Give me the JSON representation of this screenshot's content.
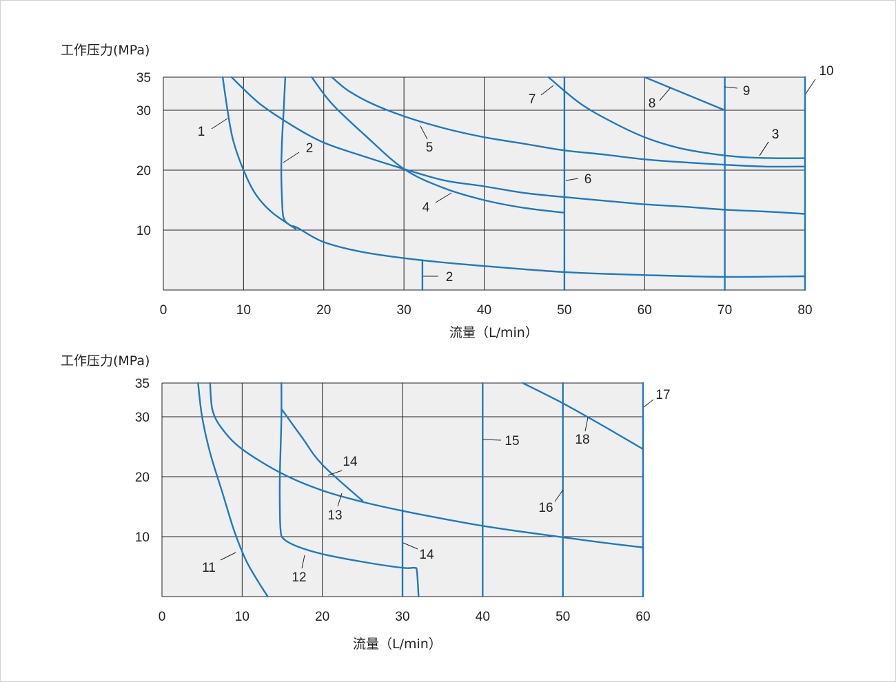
{
  "chart_data": [
    {
      "type": "line",
      "ylabel": "工作压力(MPa)",
      "xlabel": "流量（L/min）",
      "xlim": [
        0,
        80
      ],
      "ylim": [
        0,
        35
      ],
      "x_ticks": [
        "0",
        "10",
        "20",
        "30",
        "40",
        "50",
        "60",
        "70",
        "80"
      ],
      "y_ticks": [
        "10",
        "20",
        "30",
        "35"
      ],
      "grid": true,
      "line_color": "#1f78c1",
      "series": [
        {
          "name": "1",
          "points": [
            [
              7.4,
              35
            ],
            [
              8,
              30
            ],
            [
              8.7,
              25
            ],
            [
              10,
              20
            ],
            [
              11.5,
              16
            ],
            [
              13.5,
              13
            ],
            [
              16.5,
              10.2
            ]
          ]
        },
        {
          "name": "2",
          "points": [
            [
              15.2,
              35
            ],
            [
              15,
              30
            ],
            [
              14.8,
              25
            ],
            [
              14.7,
              20
            ],
            [
              14.8,
              15
            ],
            [
              15,
              12
            ],
            [
              15.8,
              10.8
            ],
            [
              16.7,
              10.4
            ],
            [
              20,
              8
            ],
            [
              25,
              6.3
            ],
            [
              32,
              5
            ],
            [
              40,
              4
            ],
            [
              50,
              3
            ],
            [
              60,
              2.5
            ],
            [
              70,
              2.2
            ],
            [
              80,
              2.3
            ]
          ]
        },
        {
          "name": "3",
          "points": [
            [
              8.5,
              35
            ],
            [
              12,
              31
            ],
            [
              16,
              27.5
            ],
            [
              20,
              24.6
            ],
            [
              25,
              22.3
            ],
            [
              30,
              20.2
            ],
            [
              35,
              18.3
            ],
            [
              40,
              17.3
            ],
            [
              45,
              16.2
            ],
            [
              50,
              15.5
            ],
            [
              55,
              14.9
            ],
            [
              60,
              14.3
            ],
            [
              65,
              13.9
            ],
            [
              70,
              13.4
            ],
            [
              75,
              13.1
            ],
            [
              80,
              12.7
            ]
          ]
        },
        {
          "name": "4",
          "points": [
            [
              18.5,
              35
            ],
            [
              21,
              31
            ],
            [
              25,
              26
            ],
            [
              30,
              20.2
            ],
            [
              35,
              17
            ],
            [
              40,
              15
            ],
            [
              45,
              13.7
            ],
            [
              50,
              12.9
            ]
          ]
        },
        {
          "name": "5",
          "points": [
            [
              21,
              35
            ],
            [
              23,
              33
            ],
            [
              26,
              31
            ],
            [
              30,
              29
            ],
            [
              35,
              27
            ],
            [
              40,
              25.5
            ],
            [
              45,
              24.4
            ],
            [
              50,
              23.3
            ],
            [
              55,
              22.6
            ],
            [
              60,
              21.8
            ],
            [
              65,
              21.3
            ],
            [
              70,
              20.9
            ],
            [
              75,
              20.6
            ],
            [
              80,
              20.6
            ]
          ]
        },
        {
          "name": "6",
          "points": [
            [
              50,
              35
            ],
            [
              50,
              0
            ]
          ]
        },
        {
          "name": "7",
          "points": [
            [
              48,
              35
            ],
            [
              52,
              31
            ],
            [
              56,
              28
            ],
            [
              60,
              25.5
            ],
            [
              64,
              23.8
            ],
            [
              68,
              22.8
            ],
            [
              72,
              22.2
            ],
            [
              76,
              22
            ],
            [
              80,
              22
            ]
          ]
        },
        {
          "name": "8",
          "points": [
            [
              60,
              35
            ],
            [
              70,
              30
            ]
          ]
        },
        {
          "name": "9",
          "points": [
            [
              70,
              35
            ],
            [
              70,
              0
            ]
          ]
        },
        {
          "name": "10",
          "points": [
            [
              80,
              35
            ],
            [
              80,
              0
            ]
          ]
        },
        {
          "name": "2",
          "points": [
            [
              32.3,
              5
            ],
            [
              32.3,
              0
            ]
          ]
        }
      ],
      "callouts": [
        "1",
        "2",
        "3",
        "4",
        "5",
        "6",
        "7",
        "8",
        "9",
        "10",
        "3",
        "2"
      ]
    },
    {
      "type": "line",
      "ylabel": "工作压力(MPa)",
      "xlabel": "流量（L/min）",
      "xlim": [
        0,
        60
      ],
      "ylim": [
        0,
        35
      ],
      "x_ticks": [
        "0",
        "10",
        "20",
        "30",
        "40",
        "50",
        "60"
      ],
      "y_ticks": [
        "10",
        "20",
        "30",
        "35"
      ],
      "grid": true,
      "line_color": "#1f78c1",
      "series": [
        {
          "name": "11",
          "points": [
            [
              4.5,
              35
            ],
            [
              5,
              30
            ],
            [
              6,
              24
            ],
            [
              7.5,
              17.5
            ],
            [
              9,
              11
            ],
            [
              10.5,
              6
            ],
            [
              12,
              2.5
            ],
            [
              13.2,
              0
            ]
          ]
        },
        {
          "name": "12",
          "points": [
            [
              14.9,
              35
            ],
            [
              14.9,
              30
            ],
            [
              14.8,
              25
            ],
            [
              14.7,
              20
            ],
            [
              14.7,
              15
            ],
            [
              14.8,
              11
            ],
            [
              15.2,
              9.6
            ],
            [
              17,
              8.3
            ],
            [
              20,
              7.1
            ],
            [
              25,
              5.8
            ],
            [
              30,
              4.8
            ],
            [
              31.5,
              4.8
            ],
            [
              31.8,
              4.2
            ],
            [
              32,
              0
            ]
          ]
        },
        {
          "name": "13",
          "points": [
            [
              6,
              35
            ],
            [
              6.3,
              31
            ],
            [
              7.5,
              28
            ],
            [
              10,
              24.6
            ],
            [
              15,
              20.5
            ],
            [
              20,
              17.7
            ],
            [
              25,
              15.8
            ],
            [
              30,
              14.3
            ],
            [
              35,
              13
            ],
            [
              40,
              11.8
            ],
            [
              45,
              10.8
            ],
            [
              50,
              9.9
            ],
            [
              55,
              9
            ],
            [
              60,
              8.2
            ]
          ]
        },
        {
          "name": "14",
          "points": [
            [
              15,
              31
            ],
            [
              17.5,
              26.5
            ],
            [
              20,
              22
            ],
            [
              25,
              16
            ]
          ]
        },
        {
          "name": "14",
          "points": [
            [
              30,
              14.5
            ],
            [
              30,
              0
            ]
          ]
        },
        {
          "name": "15",
          "points": [
            [
              40,
              35
            ],
            [
              40,
              0
            ]
          ]
        },
        {
          "name": "16",
          "points": [
            [
              50,
              35
            ],
            [
              50,
              0
            ]
          ]
        },
        {
          "name": "17",
          "points": [
            [
              60,
              35
            ],
            [
              60,
              0
            ]
          ]
        },
        {
          "name": "18",
          "points": [
            [
              45,
              35
            ],
            [
              50,
              32
            ],
            [
              55,
              28.5
            ],
            [
              60,
              24.6
            ]
          ]
        }
      ],
      "callouts": [
        "11",
        "12",
        "13",
        "14",
        "14",
        "15",
        "16",
        "17",
        "18"
      ]
    }
  ]
}
